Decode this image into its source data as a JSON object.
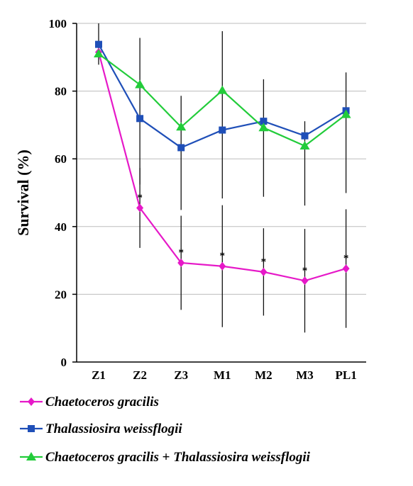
{
  "chart_data": {
    "type": "line",
    "title": "",
    "xlabel": "",
    "ylabel": "Survival (%)",
    "categories": [
      "Z1",
      "Z2",
      "Z3",
      "M1",
      "M2",
      "M3",
      "PL1"
    ],
    "ylim": [
      0,
      100
    ],
    "yticks": [
      0,
      20,
      40,
      60,
      80,
      100
    ],
    "grid": "horizontal",
    "legend_position": "bottom",
    "series": [
      {
        "name": "Chaetoceros gracilis",
        "color": "#e619c8",
        "marker": "diamond",
        "values": [
          91.5,
          45.5,
          29.3,
          28.3,
          26.6,
          24.0,
          27.6
        ],
        "error_low": [
          null,
          33.7,
          15.4,
          10.3,
          13.7,
          8.7,
          10.1
        ],
        "error_high": [
          null,
          57.3,
          43.2,
          46.3,
          39.5,
          39.3,
          45.1
        ],
        "significance": [
          "",
          "*",
          "*",
          "*",
          "*",
          "*",
          "*"
        ]
      },
      {
        "name": "Thalassiosira weissflogii",
        "color": "#1f4fb8",
        "marker": "square",
        "values": [
          93.8,
          71.9,
          63.3,
          68.5,
          71.1,
          66.8,
          74.2
        ],
        "error_low": [
          87.8,
          52.4,
          44.9,
          48.3,
          48.8,
          46.2,
          49.9
        ],
        "error_high": [
          100.0,
          95.7,
          78.6,
          97.7,
          83.5,
          71.1,
          85.5
        ],
        "significance": [
          "",
          "",
          "",
          "",
          "",
          "",
          ""
        ]
      },
      {
        "name": "Chaetoceros gracilis + Thalassiosira weissflogii",
        "color": "#22cc3a",
        "marker": "triangle",
        "values": [
          91.0,
          81.9,
          69.4,
          80.2,
          69.2,
          63.8,
          73.1
        ],
        "error_low": [
          null,
          null,
          null,
          null,
          null,
          null,
          null
        ],
        "error_high": [
          null,
          null,
          null,
          null,
          null,
          null,
          null
        ],
        "significance": [
          "",
          "",
          "",
          "",
          "",
          "",
          ""
        ]
      }
    ]
  },
  "legend": {
    "items": [
      {
        "parts": [
          {
            "text": "Chaetoceros gracilis",
            "italic": true
          }
        ]
      },
      {
        "parts": [
          {
            "text": "Thalassiosira weissflogii",
            "italic": true
          }
        ]
      },
      {
        "parts": [
          {
            "text": "Chaetoceros gracilis",
            "italic": true
          },
          {
            "text": " + ",
            "italic": false
          },
          {
            "text": "Thalassiosira weissflogii",
            "italic": true
          }
        ]
      }
    ]
  }
}
